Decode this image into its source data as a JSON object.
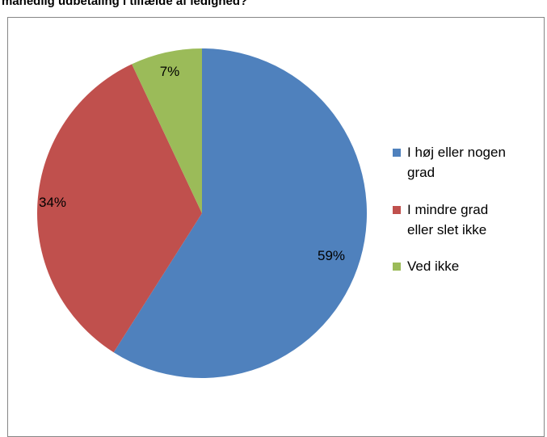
{
  "title": "månedlig udbetaling i tilfælde af ledighed?",
  "chart_data": {
    "type": "pie",
    "categories": [
      "I høj eller nogen grad",
      "I mindre grad eller slet ikke",
      "Ved ikke"
    ],
    "values": [
      59,
      34,
      7
    ],
    "labels": [
      "59%",
      "34%",
      "7%"
    ],
    "colors": [
      "#4F81BD",
      "#C0504D",
      "#9BBB59"
    ],
    "legend": {
      "placement": "right",
      "entries": [
        [
          "I høj eller nogen",
          "grad"
        ],
        [
          "I mindre grad",
          "eller slet ikke"
        ],
        [
          "Ved ikke"
        ]
      ]
    }
  }
}
